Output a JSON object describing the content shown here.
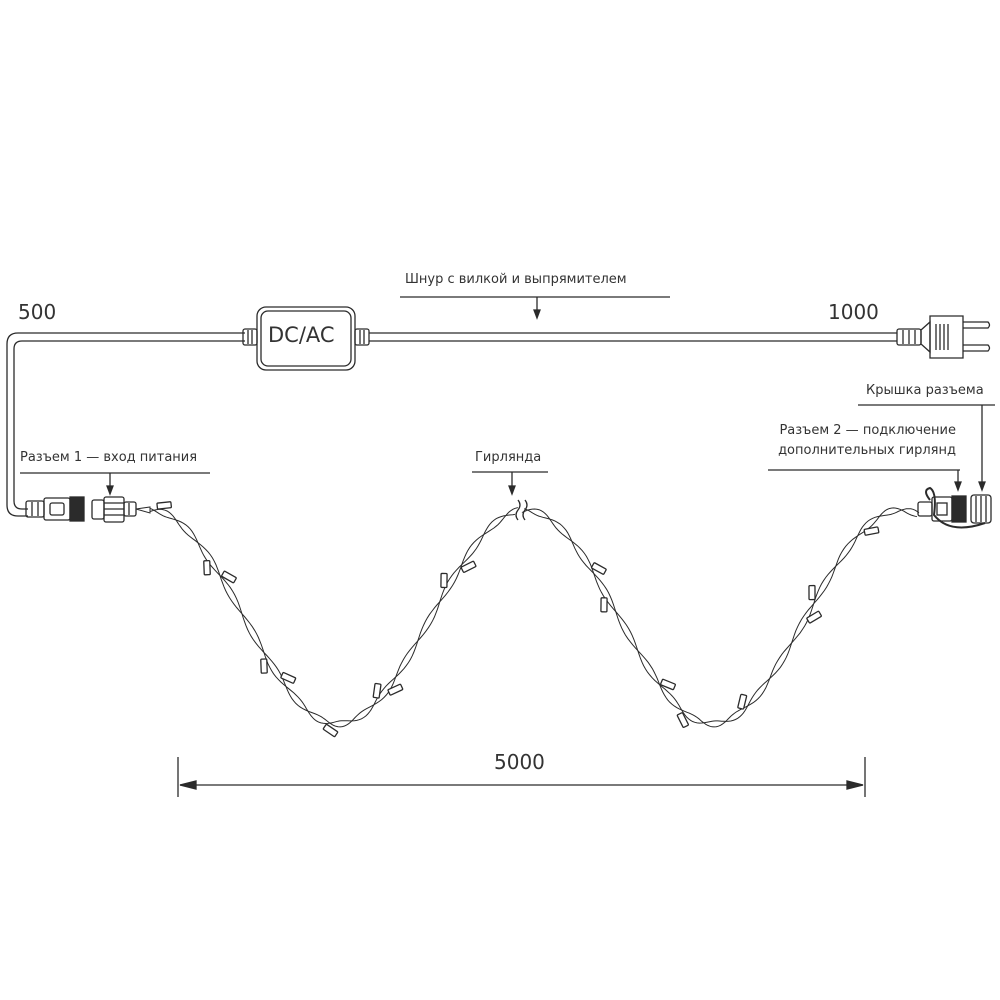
{
  "labels": {
    "cord": "Шнур с вилкой и выпрямителем",
    "box": "DC/AC",
    "len_left": "500",
    "len_right": "1000",
    "connector1": "Разъем 1 — вход питания",
    "garland": "Гирлянда",
    "cap": "Крышка разъема",
    "connector2_line1": "Разъем 2 — подключение",
    "connector2_line2": "дополнительных гирлянд",
    "len_garland": "5000"
  },
  "colors": {
    "line": "#2b2b2b",
    "background": "#ffffff"
  }
}
